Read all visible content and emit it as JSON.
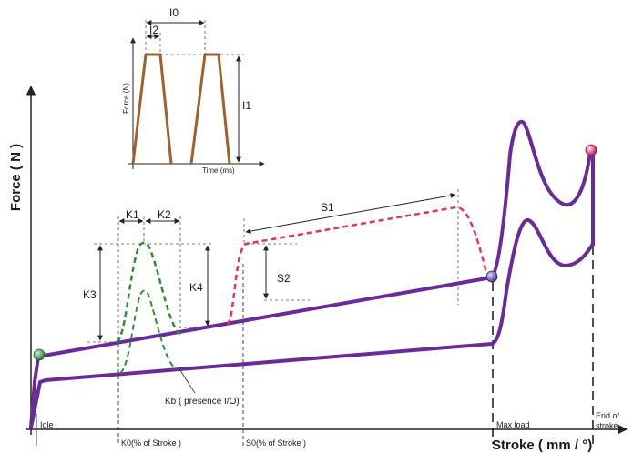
{
  "axes": {
    "y_label": "Force ( N )",
    "x_label": "Stroke ( mm / °)"
  },
  "markers": {
    "idle": "Idle",
    "k0": "K0(% of Stroke )",
    "s0": "S0(% of Stroke )",
    "max_load": "Max load",
    "end_of_stroke_1": "End of",
    "end_of_stroke_2": "stroke"
  },
  "dimensions": {
    "k1": "K1",
    "k2": "K2",
    "k3": "K3",
    "k4": "K4",
    "kb": "Kb ( presence I/O)",
    "s1": "S1",
    "s2": "S2"
  },
  "inset": {
    "y_label": "Force (N)",
    "x_label": "Time (ms)",
    "i0": "I0",
    "i1": "I1",
    "i2": "I2"
  },
  "colors": {
    "main_curve": "#6a2a9a",
    "k_pulse": "#2f8f2f",
    "s_plateau": "#e0336a",
    "inset_pulse": "#a0622a",
    "axis": "#222222"
  }
}
